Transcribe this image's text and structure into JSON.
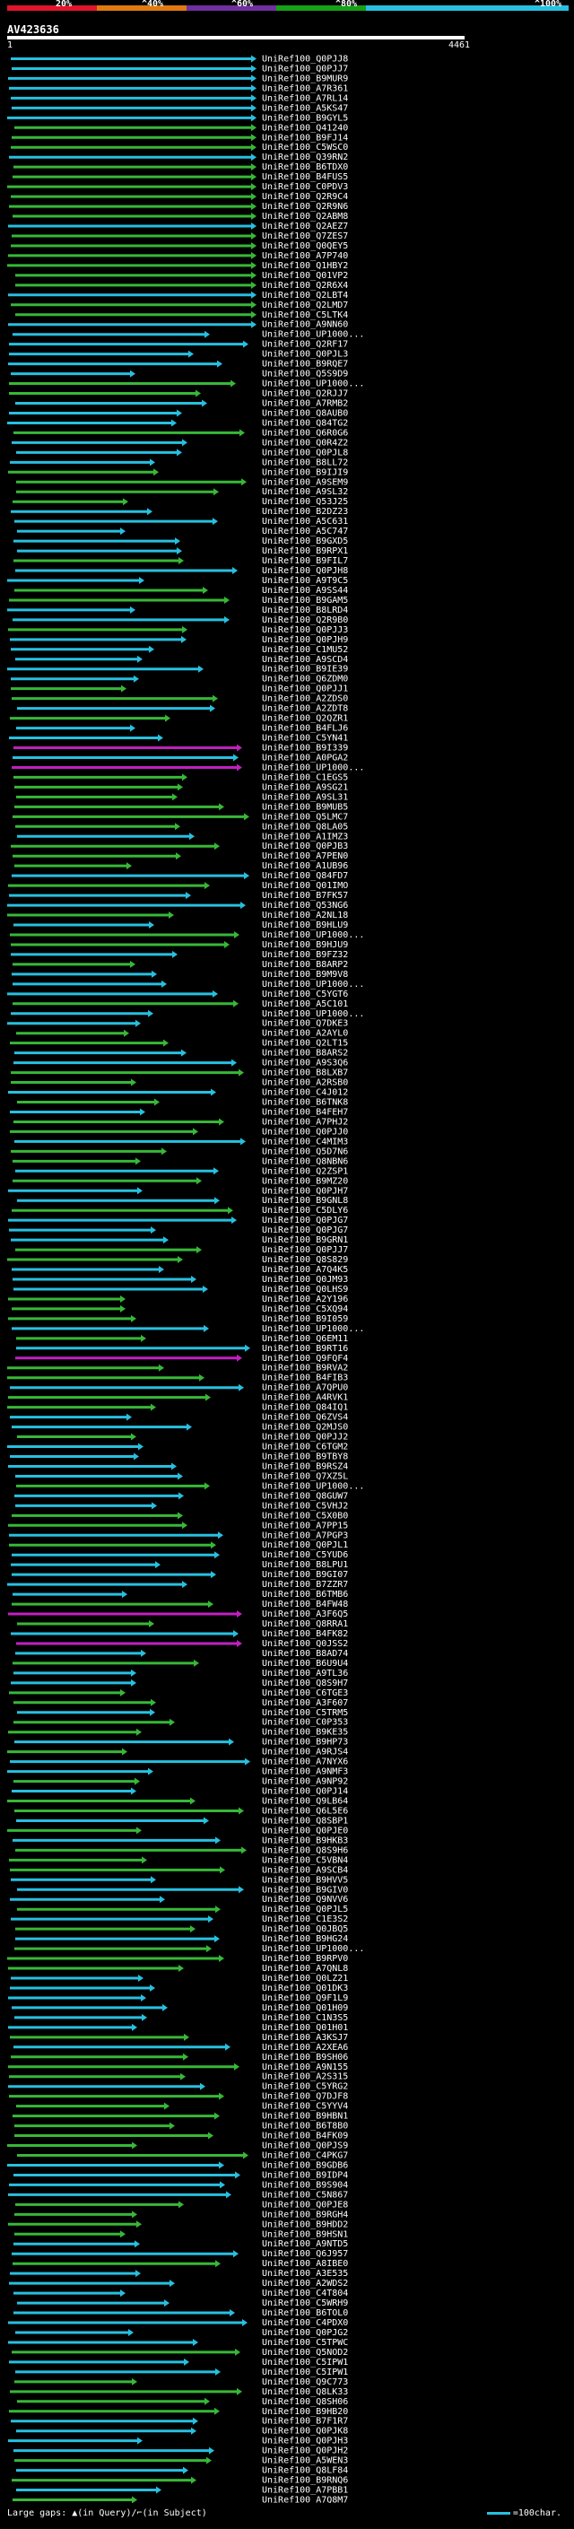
{
  "colors": {
    "scale": [
      "#e0142c",
      "#e07a10",
      "#7030a0",
      "#17a017",
      "#27c0e0"
    ],
    "hit_full": "#27c0e0",
    "hit_high": "#37b837",
    "hit_mid": "#c020c0",
    "query_bar": "#ffffff"
  },
  "scale_labels": [
    "20%",
    "^40%",
    "^60%",
    "^80%",
    "^100%"
  ],
  "query": {
    "id": "AV423636",
    "start": "1",
    "end": "4461"
  },
  "footer": {
    "gaps_text": "Large gaps: ▲(in Query)/⌐(in Subject)",
    "legend_text": "=100char."
  },
  "hits": [
    "UniRef100_Q0PJJ8",
    "UniRef100_Q0PJJ7",
    "UniRef100_B9MUR9",
    "UniRef100_A7R361",
    "UniRef100_A7RL14",
    "UniRef100_A5KS47",
    "UniRef100_B9GYL5",
    "UniRef100_Q41240",
    "UniRef100_B9FJ14",
    "UniRef100_C5WSC0",
    "UniRef100_Q39RN2",
    "UniRef100_B6TDX0",
    "UniRef100_B4FUS5",
    "UniRef100_C0PDV3",
    "UniRef100_Q2R9C4",
    "UniRef100_Q2R9N6",
    "UniRef100_Q2ABM8",
    "UniRef100_Q2AEZ7",
    "UniRef100_Q7ZES7",
    "UniRef100_Q0QEY5",
    "UniRef100_A7P740",
    "UniRef100_Q1HBY2",
    "UniRef100_Q01VP2",
    "UniRef100_Q2R6X4",
    "UniRef100_Q2LBT4",
    "UniRef100_Q2LMD7",
    "UniRef100_C5LTK4",
    "UniRef100_A9NN60",
    "UniRef100_UP1000...",
    "UniRef100_Q2RF17",
    "UniRef100_Q0PJL3",
    "UniRef100_B9RQE7",
    "UniRef100_Q5S9D9",
    "UniRef100_UP1000...",
    "UniRef100_Q2RJJ7",
    "UniRef100_A7RMB2",
    "UniRef100_Q8AUB0",
    "UniRef100_Q84TG2",
    "UniRef100_Q6R0G6",
    "UniRef100_Q0R4Z2",
    "UniRef100_Q0PJL8",
    "UniRef100_B8LL72",
    "UniRef100_B9IJI9",
    "UniRef100_A9SEM9",
    "UniRef100_A9SL32",
    "UniRef100_Q53J25",
    "UniRef100_B2DZ23",
    "UniRef100_A5C631",
    "UniRef100_A5C747",
    "UniRef100_B9GXD5",
    "UniRef100_B9RPX1",
    "UniRef100_B9FIL7",
    "UniRef100_Q0PJH8",
    "UniRef100_A9T9C5",
    "UniRef100_A9SS44",
    "UniRef100_B9GAM5",
    "UniRef100_B8LRD4",
    "UniRef100_Q2R9B0",
    "UniRef100_Q0PJJ3",
    "UniRef100_Q0PJH9",
    "UniRef100_C1MU52",
    "UniRef100_A9SCD4",
    "UniRef100_B9IE39",
    "UniRef100_Q6ZDM0",
    "UniRef100_Q0PJJ1",
    "UniRef100_A2ZDS0",
    "UniRef100_A2ZDT8",
    "UniRef100_Q2QZR1",
    "UniRef100_B4FLJ6",
    "UniRef100_C5YN41",
    "UniRef100_B9I339",
    "UniRef100_A0PGA2",
    "UniRef100_UP1000...",
    "UniRef100_C1EGS5",
    "UniRef100_A9SG21",
    "UniRef100_A9SL31",
    "UniRef100_B9MUB5",
    "UniRef100_Q5LMC7",
    "UniRef100_Q8LA05",
    "UniRef100_A1IMZ3",
    "UniRef100_Q0PJB3",
    "UniRef100_A7PEN0",
    "UniRef100_A1UB96",
    "UniRef100_Q84FD7",
    "UniRef100_Q01IMO",
    "UniRef100_B7FK57",
    "UniRef100_Q53NG6",
    "UniRef100_A2NL18",
    "UniRef100_B9HLU9",
    "UniRef100_UP1000...",
    "UniRef100_B9HJU9",
    "UniRef100_B9FZ32",
    "UniRef100_B8ARP2",
    "UniRef100_B9M9V8",
    "UniRef100_UP1000...",
    "UniRef100_C5YGT6",
    "UniRef100_A5C101",
    "UniRef100_UP1000...",
    "UniRef100_Q7DKE3",
    "UniRef100_A2AYL0",
    "UniRef100_Q2LT15",
    "UniRef100_B8ARS2",
    "UniRef100_A9S3Q6",
    "UniRef100_B8LXB7",
    "UniRef100_A2RSB0",
    "UniRef100_C4J012",
    "UniRef100_B6TNK8",
    "UniRef100_B4FEH7",
    "UniRef100_A7PHJ2",
    "UniRef100_Q0PJJ0",
    "UniRef100_C4MIM3",
    "UniRef100_Q5D7N6",
    "UniRef100_Q8NBN6",
    "UniRef100_Q2ZSP1",
    "UniRef100_B9MZ20",
    "UniRef100_Q0PJH7",
    "UniRef100_B9GNL8",
    "UniRef100_C5DLY6",
    "UniRef100_Q0PJG7",
    "UniRef100_Q0PJG7",
    "UniRef100_B9GRN1",
    "UniRef100_Q0PJJ7",
    "UniRef100_Q8S829",
    "UniRef100_A7Q4K5",
    "UniRef100_Q0JM93",
    "UniRef100_Q0LHS9",
    "UniRef100_A2Y196",
    "UniRef100_C5XQ94",
    "UniRef100_B9I059",
    "UniRef100_UP1000...",
    "UniRef100_Q6EM11",
    "UniRef100_B9RT16",
    "UniRef100_Q9FQF4",
    "UniRef100_B9RVA2",
    "UniRef100_B4FIB3",
    "UniRef100_A7QPU0",
    "UniRef100_A4RVK1",
    "UniRef100_Q84IQ1",
    "UniRef100_Q6ZVS4",
    "UniRef100_Q2MJS0",
    "UniRef100_Q0PJJ2",
    "UniRef100_C6TGM2",
    "UniRef100_B9TBY8",
    "UniRef100_B9RSZ4",
    "UniRef100_Q7XZ5L",
    "UniRef100_UP1000...",
    "UniRef100_Q8GUW7",
    "UniRef100_C5VHJ2",
    "UniRef100_C5X0B0",
    "UniRef100_A7PP15",
    "UniRef100_A7PGP3",
    "UniRef100_Q0PJL1",
    "UniRef100_C5YUD6",
    "UniRef100_B8LPU1",
    "UniRef100_B9GI07",
    "UniRef100_B7ZZR7",
    "UniRef100_B6TMB6",
    "UniRef100_B4FW48",
    "UniRef100_A3F6Q5",
    "UniRef100_Q8RRA1",
    "UniRef100_B4FK82",
    "UniRef100_Q0JSS2",
    "UniRef100_B8AD74",
    "UniRef100_B6U9U4",
    "UniRef100_A9TL36",
    "UniRef100_Q8S9H7",
    "UniRef100_C6TGE3",
    "UniRef100_A3F607",
    "UniRef100_C5TRM5",
    "UniRef100_C0P353",
    "UniRef100_B9KE35",
    "UniRef100_B9HP73",
    "UniRef100_A9RJS4",
    "UniRef100_A7NYX6",
    "UniRef100_A9NMF3",
    "UniRef100_A9NP92",
    "UniRef100_Q0PJ14",
    "UniRef100_Q9LB64",
    "UniRef100_Q6L5E6",
    "UniRef100_Q8SBP1",
    "UniRef100_Q0PJE0",
    "UniRef100_B9HKB3",
    "UniRef100_Q8S9H6",
    "UniRef100_C5VBN4",
    "UniRef100_A9SCB4",
    "UniRef100_B9HVV5",
    "UniRef100_B9GIV0",
    "UniRef100_Q9NVV6",
    "UniRef100_Q0PJL5",
    "UniRef100_C1E3S2",
    "UniRef100_Q0JBQ5",
    "UniRef100_B9HG24",
    "UniRef100_UP1000...",
    "UniRef100_B9RPV0",
    "UniRef100_A7QNL8",
    "UniRef100_Q0LZ21",
    "UniRef100_Q01DK3",
    "UniRef100_Q9F1L9",
    "UniRef100_Q01H09",
    "UniRef100_C1N3S5",
    "UniRef100_Q01H01",
    "UniRef100_A3KSJ7",
    "UniRef100_A2XEA6",
    "UniRef100_B9SH06",
    "UniRef100_A9N155",
    "UniRef100_A2S315",
    "UniRef100_C5YRG2",
    "UniRef100_Q7DJF8",
    "UniRef100_C5YYV4",
    "UniRef100_B9HBN1",
    "UniRef100_B6T8B0",
    "UniRef100_B4FK09",
    "UniRef100_Q0PJS9",
    "UniRef100_C4PKG7",
    "UniRef100_B9GDB6",
    "UniRef100_B9IDP4",
    "UniRef100_B9S904",
    "UniRef100_C5N867",
    "UniRef100_Q0PJE8",
    "UniRef100_B9RGH4",
    "UniRef100_B9HDD2",
    "UniRef100_B9HSN1",
    "UniRef100_A9NTD5",
    "UniRef100_Q6J957",
    "UniRef100_A8IBE0",
    "UniRef100_A3E535",
    "UniRef100_A2WDS2",
    "UniRef100_C4T804",
    "UniRef100_C5WRH9",
    "UniRef100_B6TOL0",
    "UniRef100_C4PDX0",
    "UniRef100_Q0PJG2",
    "UniRef100_C5TPWC",
    "UniRef100_Q5NOD2",
    "UniRef100_C5IPW1",
    "UniRef100_C5IPW1",
    "UniRef100_Q9C773",
    "UniRef100_Q8LK33",
    "UniRef100_Q8SH06",
    "UniRef100_B9HB20",
    "UniRef100_B7F1R7",
    "UniRef100_Q0PJK8",
    "UniRef100_Q0PJH3",
    "UniRef100_Q0PJH2",
    "UniRef100_A5WEN3",
    "UniRef100_Q8LF84",
    "UniRef100_B9RNQ6",
    "UniRef100_A7PBB1",
    "UniRef100_A7Q8M7"
  ]
}
